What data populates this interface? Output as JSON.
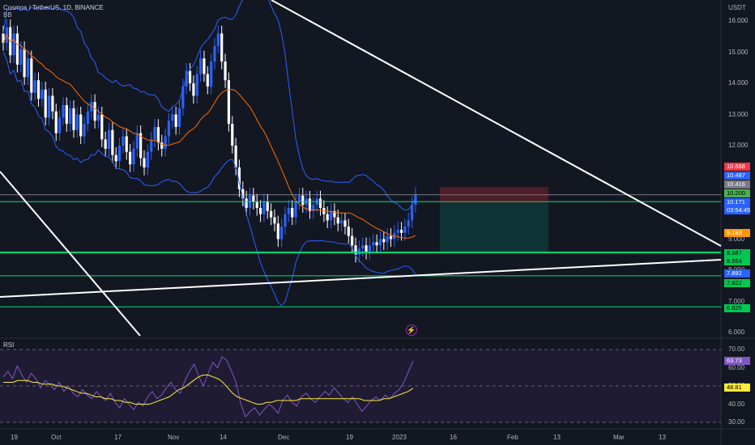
{
  "header": {
    "symbol_line": "Cosmos / TetherUS, 1D, BINANCE",
    "indicator": "BB",
    "unit": "USDT"
  },
  "rsi_label": "RSI",
  "colors": {
    "background": "#131722",
    "up_candle": "#2962ff",
    "down_candle": "#ffffff",
    "bb_band": "#2962ff",
    "bb_basis": "#ff6d00",
    "rsi_line": "#7e57c2",
    "rsi_ma": "#ffeb3b",
    "trendline": "#ffffff",
    "level_line": "#00e676"
  },
  "chart_data": [
    {
      "type": "candlestick",
      "title": "Cosmos / TetherUS, 1D, BINANCE",
      "ylabel": "USDT",
      "ylim": [
        6.0,
        16.5
      ],
      "y_ticks": [
        "16.000",
        "15.000",
        "14.000",
        "13.000",
        "12.000",
        "11.000",
        "10.000",
        "9.000",
        "8.000",
        "7.000",
        "6.000"
      ],
      "x_tick_labels": [
        "19",
        "Oct",
        "17",
        "Nov",
        "14",
        "Dec",
        "19",
        "2023",
        "16",
        "Feb",
        "13",
        "Mar",
        "13"
      ],
      "close_series": [
        15.3,
        15.8,
        14.9,
        15.6,
        14.6,
        15.1,
        14.2,
        14.8,
        13.7,
        14.1,
        13.5,
        13.8,
        12.9,
        13.6,
        13.1,
        12.4,
        12.9,
        13.3,
        12.7,
        13.2,
        12.5,
        13.0,
        12.3,
        12.7,
        13.1,
        13.4,
        12.8,
        13.0,
        12.2,
        11.9,
        12.5,
        11.7,
        11.5,
        12.0,
        12.3,
        11.8,
        11.4,
        11.9,
        12.4,
        11.6,
        11.3,
        11.8,
        12.2,
        12.6,
        12.1,
        11.9,
        12.3,
        12.8,
        13.0,
        12.6,
        13.2,
        13.9,
        14.4,
        14.0,
        13.6,
        14.3,
        14.8,
        14.3,
        13.9,
        14.7,
        15.2,
        15.6,
        14.7,
        14.1,
        12.7,
        12.0,
        11.3,
        10.6,
        10.3,
        10.0,
        10.4,
        10.2,
        10.0,
        9.8,
        10.2,
        9.9,
        9.7,
        9.5,
        9.0,
        9.4,
        9.8,
        10.0,
        9.7,
        10.2,
        10.4,
        10.1,
        10.3,
        9.9,
        10.1,
        10.3,
        10.0,
        9.8,
        9.6,
        9.9,
        9.7,
        9.5,
        9.6,
        9.4,
        9.1,
        8.8,
        8.5,
        8.7,
        8.8,
        8.6,
        8.8,
        8.9,
        8.8,
        9.0,
        8.9,
        9.1,
        9.0,
        9.2,
        9.3,
        9.2,
        9.4,
        9.6,
        10.1,
        10.42
      ],
      "bollinger": {
        "upper_max": 16.4,
        "lower_min": 6.0,
        "basis_last": 9.19
      },
      "price_scale_labels": [
        {
          "value": "10.668",
          "color": "#f23645"
        },
        {
          "value": "10.487",
          "color": "#2962ff"
        },
        {
          "value": "10.416",
          "color": "#787b86"
        },
        {
          "value": "10.200",
          "color": "#4caf50"
        },
        {
          "value": "10.171\n03:54:45",
          "color": "#2962ff"
        },
        {
          "value": "9.189",
          "color": "#ff9800"
        },
        {
          "value": "8.587",
          "color": "#00c853"
        },
        {
          "value": "8.554",
          "color": "#00c853"
        },
        {
          "value": "7.892",
          "color": "#2962ff"
        },
        {
          "value": "7.822",
          "color": "#00c853"
        },
        {
          "value": "6.825",
          "color": "#00c853"
        }
      ],
      "horizontal_levels": [
        10.2,
        8.587,
        8.554,
        7.822,
        6.825
      ],
      "position_tool": {
        "target": 10.668,
        "entry": 10.171,
        "stop": 8.587
      },
      "trendlines": [
        {
          "from": [
            "19 Sep",
            16.5
          ],
          "to": [
            "Mar",
            8.55
          ]
        },
        {
          "from": [
            "start",
            7.35
          ],
          "to": [
            "end",
            8.35
          ]
        },
        {
          "from": [
            "start",
            11.7
          ],
          "to": [
            "Oct 27",
            6.0
          ]
        }
      ]
    },
    {
      "type": "line",
      "title": "RSI",
      "ylim": [
        28,
        72
      ],
      "y_ticks": [
        "70.00",
        "60.00",
        "50.00",
        "40.00",
        "30.00"
      ],
      "rsi_levels": [
        70,
        50,
        30
      ],
      "series": [
        {
          "name": "RSI",
          "values": [
            55,
            58,
            54,
            61,
            56,
            52,
            57,
            54,
            49,
            53,
            51,
            48,
            52,
            47,
            50,
            46,
            44,
            48,
            45,
            43,
            47,
            44,
            42,
            46,
            41,
            38,
            43,
            40,
            37,
            41,
            39,
            44,
            47,
            43,
            45,
            49,
            52,
            48,
            46,
            53,
            58,
            62,
            55,
            50,
            57,
            63,
            60,
            66,
            64,
            58,
            52,
            40,
            33,
            36,
            38,
            34,
            37,
            40,
            38,
            35,
            42,
            45,
            41,
            39,
            44,
            46,
            43,
            41,
            44,
            47,
            45,
            49,
            46,
            43,
            41,
            44,
            40,
            36,
            39,
            42,
            44,
            42,
            45,
            43,
            46,
            48,
            52,
            58,
            63.73
          ]
        },
        {
          "name": "RSI MA",
          "values": [
            52,
            52,
            52,
            53,
            53,
            53,
            52,
            52,
            51,
            51,
            51,
            50,
            50,
            49,
            48,
            47,
            46,
            46,
            45,
            44,
            44,
            43,
            43,
            42,
            42,
            41,
            41,
            40,
            40,
            40,
            40,
            41,
            42,
            43,
            44,
            46,
            48,
            49,
            51,
            53,
            55,
            56,
            56,
            55,
            54,
            52,
            49,
            46,
            44,
            43,
            42,
            41,
            40,
            40,
            41,
            41,
            42,
            42,
            42,
            42,
            42,
            43,
            43,
            43,
            43,
            43,
            43,
            43,
            43,
            43,
            43,
            43,
            43,
            43,
            42,
            42,
            42,
            42,
            43,
            43,
            44,
            45,
            46,
            47,
            48.81
          ]
        }
      ],
      "value_labels": [
        {
          "value": "63.73",
          "color": "#7e57c2"
        },
        {
          "value": "48.81",
          "color": "#ffeb3b"
        }
      ]
    }
  ]
}
